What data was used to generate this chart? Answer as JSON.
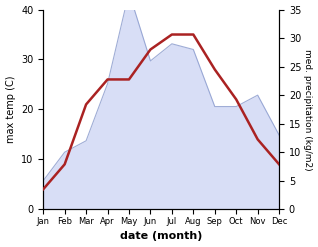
{
  "months": [
    "Jan",
    "Feb",
    "Mar",
    "Apr",
    "May",
    "Jun",
    "Jul",
    "Aug",
    "Sep",
    "Oct",
    "Nov",
    "Dec"
  ],
  "month_indices": [
    1,
    2,
    3,
    4,
    5,
    6,
    7,
    8,
    9,
    10,
    11,
    12
  ],
  "max_temp": [
    4,
    9,
    21,
    26,
    26,
    32,
    35,
    35,
    28,
    22,
    14,
    9
  ],
  "precipitation": [
    5,
    10,
    12,
    22,
    38,
    26,
    29,
    28,
    18,
    18,
    20,
    13
  ],
  "temp_color": "#aa2222",
  "precip_fill_color": "#b8c4f0",
  "precip_line_color": "#8899cc",
  "left_ylabel": "max temp (C)",
  "right_ylabel": "med. precipitation (kg/m2)",
  "xlabel": "date (month)",
  "ylim_left": [
    0,
    40
  ],
  "ylim_right": [
    0,
    35
  ],
  "left_yticks": [
    0,
    10,
    20,
    30,
    40
  ],
  "right_yticks": [
    0,
    5,
    10,
    15,
    20,
    25,
    30,
    35
  ],
  "background_color": "#ffffff",
  "fig_width": 3.18,
  "fig_height": 2.47,
  "dpi": 100
}
